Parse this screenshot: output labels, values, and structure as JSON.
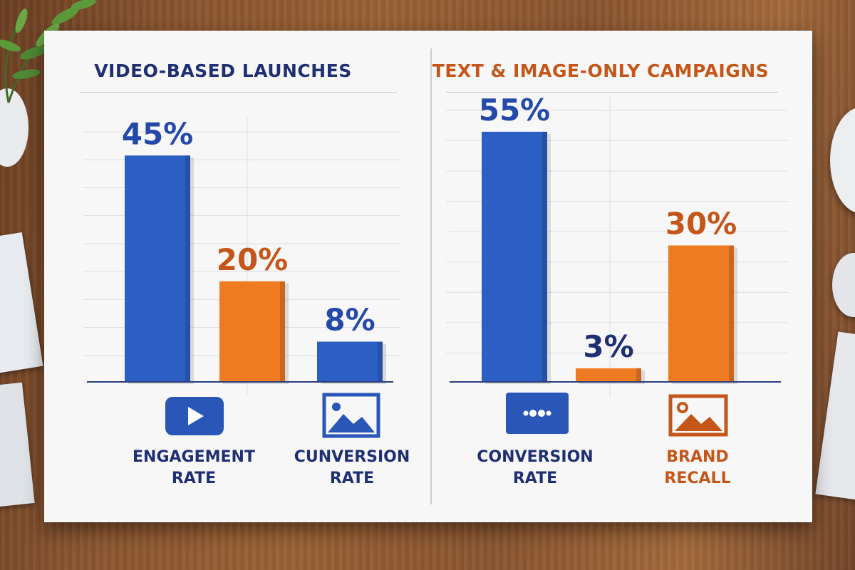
{
  "panels": [
    {
      "title": "VIDEO-BASED LAUNCHES",
      "title_color": "#1f2f72",
      "categories": [
        {
          "label_lines": [
            "ENGAGEMENT",
            "RATE"
          ],
          "icon": "play-video-icon",
          "icon_color": "#2a56b8"
        },
        {
          "label_lines": [
            "CUNVERSION",
            "RATE"
          ],
          "icon": "image-icon",
          "icon_color": "#2a56b8"
        }
      ]
    },
    {
      "title": "TEXT & IMAGE-ONLY CAMPAIGNS",
      "title_color": "#c4561a",
      "categories": [
        {
          "label_lines": [
            "CONVERSION",
            "RATE"
          ],
          "icon": "dots-video-icon",
          "icon_color": "#2a56b8"
        },
        {
          "label_lines": [
            "BRAND",
            "RECALL"
          ],
          "icon": "image-outline-icon",
          "icon_color": "#c4561a"
        }
      ]
    }
  ],
  "chart_data": [
    {
      "type": "bar",
      "title": "VIDEO-BASED LAUNCHES",
      "categories": [
        "ENGAGEMENT RATE",
        "CUNVERSION RATE"
      ],
      "bars": [
        {
          "label": "45%",
          "value": 45,
          "color": "#2c5fc4"
        },
        {
          "label": "20%",
          "value": 20,
          "color": "#ee7a22"
        },
        {
          "label": "8%",
          "value": 8,
          "color": "#2c5fc4"
        }
      ],
      "ylim": [
        0,
        50
      ],
      "grid": true
    },
    {
      "type": "bar",
      "title": "TEXT & IMAGE-ONLY CAMPAIGNS",
      "categories": [
        "CONVERSION RATE",
        "BRAND RECALL"
      ],
      "bars": [
        {
          "label": "55%",
          "value": 55,
          "color": "#2c5fc4"
        },
        {
          "label": "3%",
          "value": 3,
          "color": "#ee7a22"
        },
        {
          "label": "30%",
          "value": 30,
          "color": "#ee7a22"
        }
      ],
      "ylim": [
        0,
        60
      ],
      "grid": true
    }
  ],
  "colors": {
    "blue": "#2c5fc4",
    "orange": "#ee7a22",
    "navy": "#1f2f72",
    "burnt_orange": "#c4561a",
    "label_blue": "#2549a8"
  }
}
